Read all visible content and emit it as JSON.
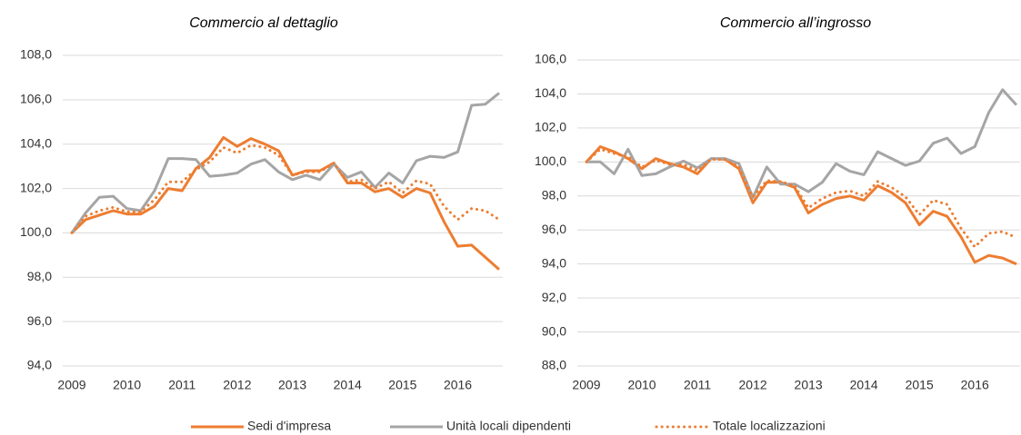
{
  "chart_data": [
    {
      "type": "line",
      "title": "Commercio al dettaglio",
      "legend": "bottom",
      "grid": true,
      "x": [
        2009,
        2009.25,
        2009.5,
        2009.75,
        2010,
        2010.25,
        2010.5,
        2010.75,
        2011,
        2011.25,
        2011.5,
        2011.75,
        2012,
        2012.25,
        2012.5,
        2012.75,
        2013,
        2013.25,
        2013.5,
        2013.75,
        2014,
        2014.25,
        2014.5,
        2014.75,
        2015,
        2015.25,
        2015.5,
        2015.75,
        2016,
        2016.25,
        2016.5,
        2016.75
      ],
      "xlim": [
        2009,
        2016.75
      ],
      "xticks": [
        2009,
        2010,
        2011,
        2012,
        2013,
        2014,
        2015,
        2016
      ],
      "ylim": [
        94,
        108
      ],
      "yticks": [
        {
          "value": 94,
          "label": "94,0"
        },
        {
          "value": 96,
          "label": "96,0"
        },
        {
          "value": 98,
          "label": "98,0"
        },
        {
          "value": 100,
          "label": "100,0"
        },
        {
          "value": 102,
          "label": "102,0"
        },
        {
          "value": 104,
          "label": "104,0"
        },
        {
          "value": 106,
          "label": "106,0"
        },
        {
          "value": 108,
          "label": "108,0"
        }
      ],
      "series": [
        {
          "name": "Sedi d'impresa",
          "color": "#ed7d31",
          "style": "solid",
          "values": [
            100,
            100.6,
            100.8,
            101,
            100.85,
            100.85,
            101.2,
            102,
            101.9,
            102.9,
            103.4,
            104.3,
            103.9,
            104.25,
            104,
            103.7,
            102.6,
            102.8,
            102.8,
            103.15,
            102.25,
            102.25,
            101.85,
            102,
            101.6,
            102,
            101.8,
            100.5,
            99.4,
            99.45,
            98.9,
            98.35
          ]
        },
        {
          "name": "Unità locali dipendenti",
          "color": "#a5a5a5",
          "style": "solid",
          "values": [
            100,
            100.9,
            101.6,
            101.65,
            101.1,
            101,
            101.9,
            103.35,
            103.35,
            103.3,
            102.55,
            102.6,
            102.7,
            103.1,
            103.3,
            102.75,
            102.4,
            102.6,
            102.4,
            103.1,
            102.5,
            102.75,
            102.05,
            102.7,
            102.25,
            103.25,
            103.45,
            103.4,
            103.65,
            105.75,
            105.8,
            106.3
          ]
        },
        {
          "name": "Totale localizzazioni",
          "color": "#ed7d31",
          "style": "dotted",
          "values": [
            100,
            100.75,
            101,
            101.15,
            100.95,
            100.95,
            101.5,
            102.3,
            102.3,
            102.85,
            103.2,
            103.85,
            103.6,
            103.95,
            103.85,
            103.5,
            102.6,
            102.75,
            102.75,
            103.15,
            102.3,
            102.4,
            102,
            102.3,
            101.8,
            102.35,
            102.2,
            101.2,
            100.6,
            101.1,
            101,
            100.6
          ]
        }
      ]
    },
    {
      "type": "line",
      "title": "Commercio all’ingrosso",
      "grid": true,
      "x": [
        2009,
        2009.25,
        2009.5,
        2009.75,
        2010,
        2010.25,
        2010.5,
        2010.75,
        2011,
        2011.25,
        2011.5,
        2011.75,
        2012,
        2012.25,
        2012.5,
        2012.75,
        2013,
        2013.25,
        2013.5,
        2013.75,
        2014,
        2014.25,
        2014.5,
        2014.75,
        2015,
        2015.25,
        2015.5,
        2015.75,
        2016,
        2016.25,
        2016.5,
        2016.75
      ],
      "xlim": [
        2009,
        2016.75
      ],
      "xticks": [
        2009,
        2010,
        2011,
        2012,
        2013,
        2014,
        2015,
        2016
      ],
      "ylim": [
        88,
        106
      ],
      "yticks": [
        {
          "value": 88,
          "label": "88,0"
        },
        {
          "value": 90,
          "label": "90,0"
        },
        {
          "value": 92,
          "label": "92,0"
        },
        {
          "value": 94,
          "label": "94,0"
        },
        {
          "value": 96,
          "label": "96,0"
        },
        {
          "value": 98,
          "label": "98,0"
        },
        {
          "value": 100,
          "label": "100,0"
        },
        {
          "value": 102,
          "label": "102,0"
        },
        {
          "value": 104,
          "label": "104,0"
        },
        {
          "value": 106,
          "label": "106,0"
        }
      ],
      "series": [
        {
          "color": "#ed7d31",
          "style": "solid",
          "values": [
            100,
            100.9,
            100.6,
            100.2,
            99.6,
            100.2,
            99.9,
            99.7,
            99.3,
            100.2,
            100.15,
            99.6,
            97.6,
            98.8,
            98.8,
            98.5,
            97,
            97.5,
            97.85,
            98,
            97.75,
            98.6,
            98.2,
            97.6,
            96.3,
            97.1,
            96.8,
            95.6,
            94.1,
            94.5,
            94.35,
            94
          ]
        },
        {
          "color": "#a5a5a5",
          "style": "solid",
          "values": [
            100,
            100,
            99.3,
            100.75,
            99.2,
            99.3,
            99.7,
            100.05,
            99.65,
            100.2,
            100.2,
            99.9,
            97.9,
            99.7,
            98.7,
            98.7,
            98.25,
            98.8,
            99.9,
            99.45,
            99.25,
            100.6,
            100.2,
            99.8,
            100.05,
            101.1,
            101.4,
            100.5,
            100.9,
            102.9,
            104.25,
            103.35
          ]
        },
        {
          "color": "#ed7d31",
          "style": "dotted",
          "values": [
            100,
            100.75,
            100.5,
            100.3,
            99.7,
            100.1,
            99.85,
            99.85,
            99.5,
            100.15,
            100.15,
            99.7,
            97.95,
            98.9,
            98.85,
            98.6,
            97.3,
            97.85,
            98.2,
            98.3,
            98,
            98.85,
            98.5,
            97.95,
            96.9,
            97.75,
            97.5,
            96.1,
            95,
            95.8,
            95.9,
            95.55
          ]
        }
      ]
    }
  ]
}
